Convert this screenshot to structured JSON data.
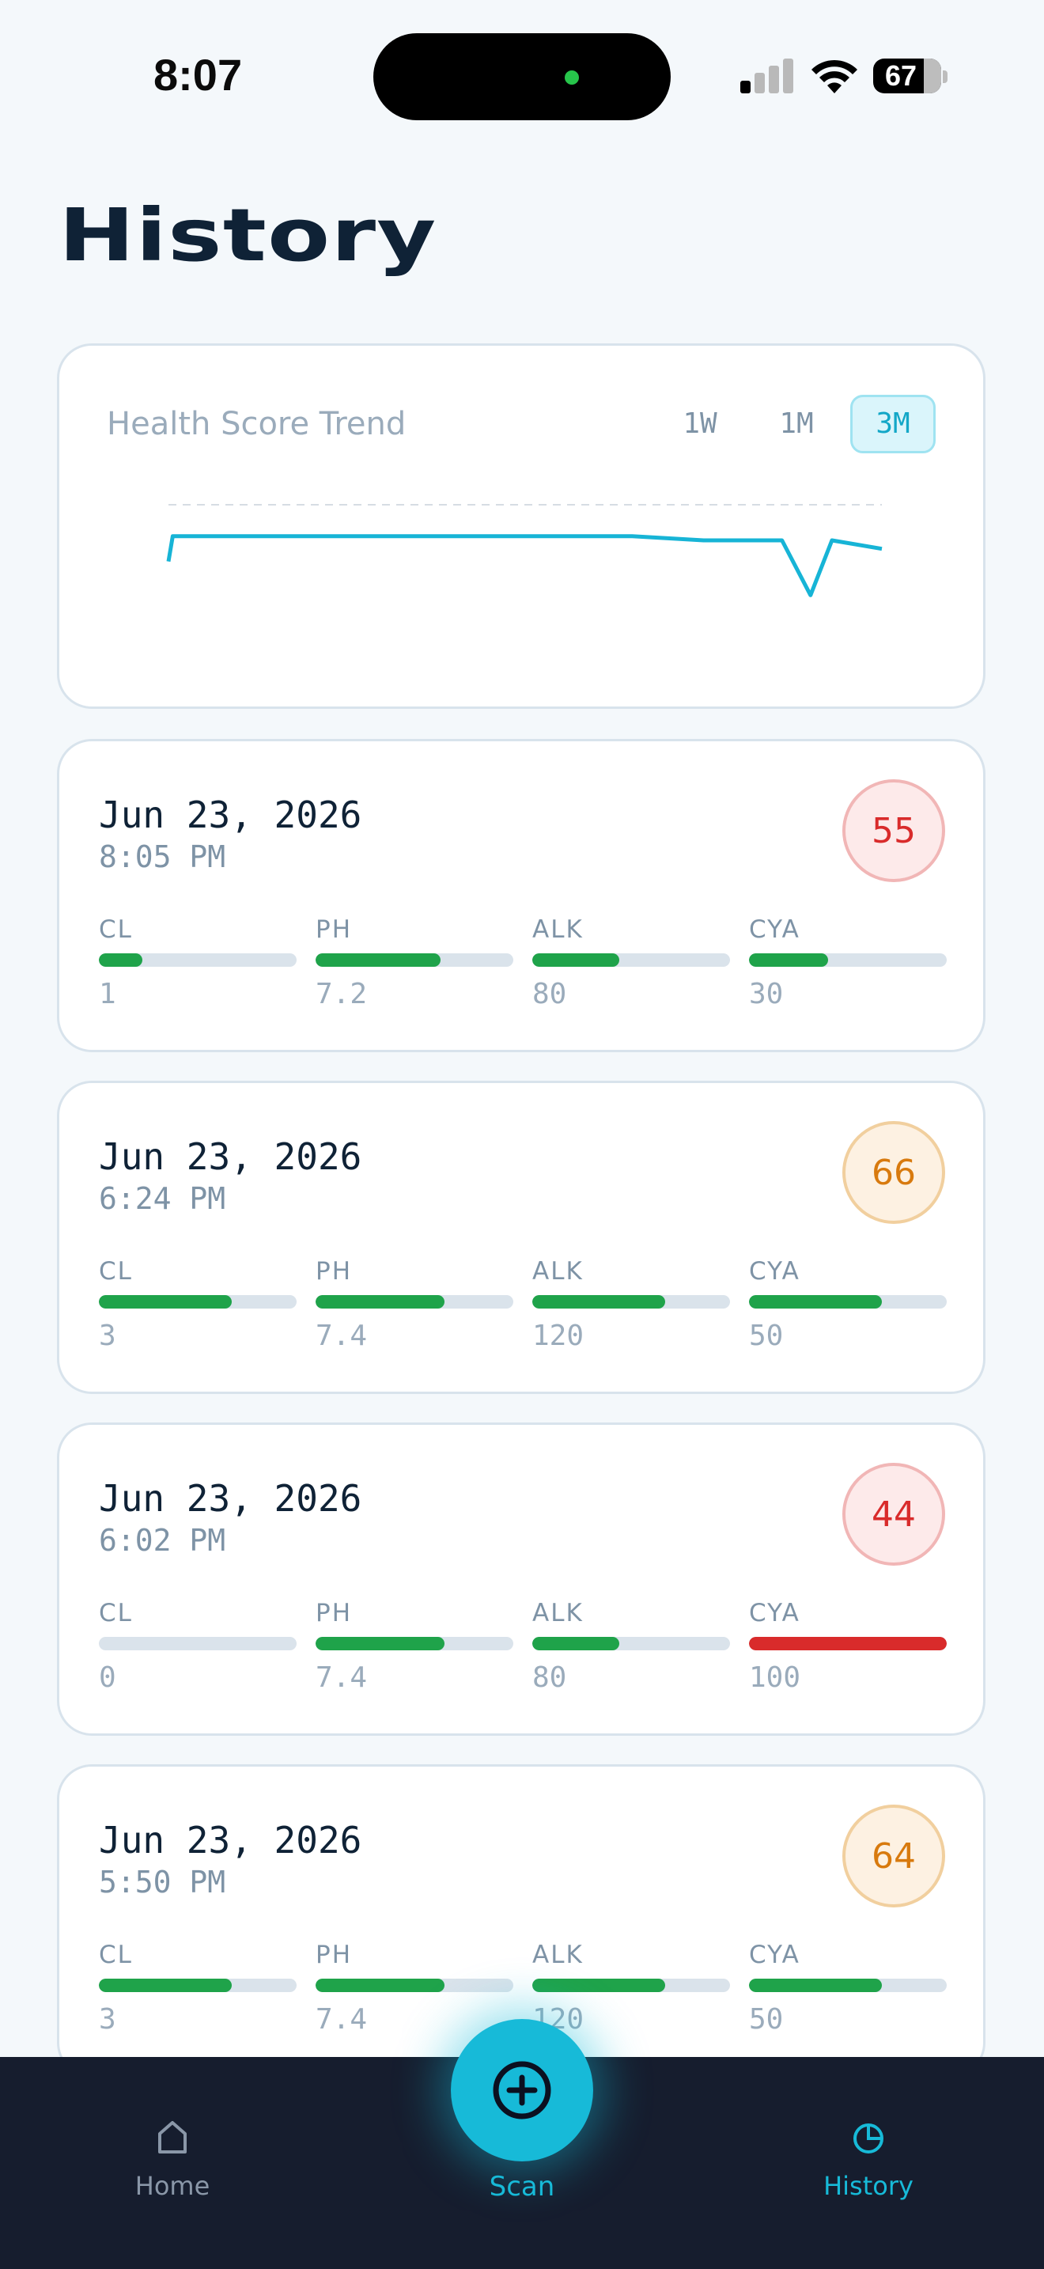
{
  "status_bar": {
    "time": "8:07",
    "battery": "67"
  },
  "page": {
    "title": "History"
  },
  "trend": {
    "title": "Health Score Trend",
    "ranges": [
      "1W",
      "1M",
      "3M"
    ],
    "active_range": "3M",
    "accent_color": "#17b4d6",
    "chart_data": {
      "type": "line",
      "title": "Health Score Trend",
      "series": [
        {
          "values": [
            52,
            58,
            58,
            58,
            58,
            58,
            58,
            57,
            57,
            44,
            57,
            55
          ]
        }
      ],
      "grid": true,
      "ylim": [
        0,
        100
      ]
    }
  },
  "entries": [
    {
      "date": "Jun 23, 2026",
      "time": "8:05 PM",
      "score": "55",
      "level": "bad",
      "metrics": [
        {
          "label": "CL",
          "value": "1",
          "level": 0.22,
          "color": "#1fa34a"
        },
        {
          "label": "PH",
          "value": "7.2",
          "level": 0.63,
          "color": "#1fa34a"
        },
        {
          "label": "ALK",
          "value": "80",
          "level": 0.44,
          "color": "#1fa34a"
        },
        {
          "label": "CYA",
          "value": "30",
          "level": 0.4,
          "color": "#1fa34a"
        }
      ]
    },
    {
      "date": "Jun 23, 2026",
      "time": "6:24 PM",
      "score": "66",
      "level": "mid",
      "metrics": [
        {
          "label": "CL",
          "value": "3",
          "level": 0.67,
          "color": "#1fa34a"
        },
        {
          "label": "PH",
          "value": "7.4",
          "level": 0.65,
          "color": "#1fa34a"
        },
        {
          "label": "ALK",
          "value": "120",
          "level": 0.67,
          "color": "#1fa34a"
        },
        {
          "label": "CYA",
          "value": "50",
          "level": 0.67,
          "color": "#1fa34a"
        }
      ]
    },
    {
      "date": "Jun 23, 2026",
      "time": "6:02 PM",
      "score": "44",
      "level": "bad",
      "metrics": [
        {
          "label": "CL",
          "value": "0",
          "level": 0.0,
          "color": "#1fa34a"
        },
        {
          "label": "PH",
          "value": "7.4",
          "level": 0.65,
          "color": "#1fa34a"
        },
        {
          "label": "ALK",
          "value": "80",
          "level": 0.44,
          "color": "#1fa34a"
        },
        {
          "label": "CYA",
          "value": "100",
          "level": 1.0,
          "color": "#d92b2b"
        }
      ]
    },
    {
      "date": "Jun 23, 2026",
      "time": "5:50 PM",
      "score": "64",
      "level": "mid",
      "metrics": [
        {
          "label": "CL",
          "value": "3",
          "level": 0.67,
          "color": "#1fa34a"
        },
        {
          "label": "PH",
          "value": "7.4",
          "level": 0.65,
          "color": "#1fa34a"
        },
        {
          "label": "ALK",
          "value": "120",
          "level": 0.67,
          "color": "#1fa34a"
        },
        {
          "label": "CYA",
          "value": "50",
          "level": 0.67,
          "color": "#1fa34a"
        }
      ]
    }
  ],
  "nav": {
    "home": {
      "label": "Home",
      "icon": "home-icon"
    },
    "scan": {
      "label": "Scan",
      "icon": "plus-circle-icon"
    },
    "history": {
      "label": "History",
      "icon": "clock-pie-icon"
    },
    "active_color": "#17bad8",
    "inactive_color": "#8a97a8"
  }
}
